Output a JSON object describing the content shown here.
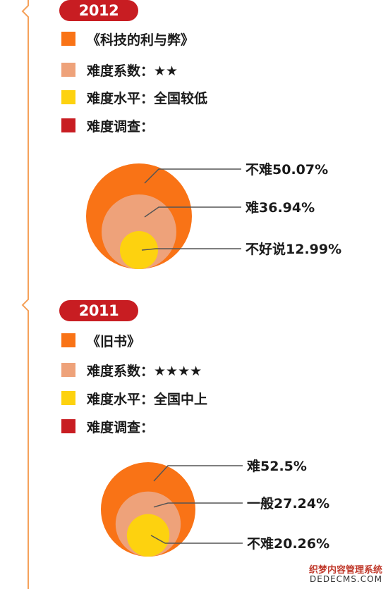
{
  "colors": {
    "orange": "#f97316",
    "peach": "#eea27a",
    "yellow": "#fdd20f",
    "red": "#c81d22",
    "timeline": "#f5a15a",
    "leader": "#555555"
  },
  "sections": [
    {
      "year": "2012",
      "legend": [
        {
          "text": "《科技的利与弊》",
          "swatch": "orange"
        },
        {
          "text": "难度系数：★★",
          "swatch": "peach"
        },
        {
          "text": "难度水平：全国较低",
          "swatch": "yellow"
        },
        {
          "text": "难度调查：",
          "swatch": "red"
        }
      ]
    },
    {
      "year": "2011",
      "legend": [
        {
          "text": "《旧书》",
          "swatch": "orange"
        },
        {
          "text": "难度系数：★★★★",
          "swatch": "peach"
        },
        {
          "text": "难度水平：全国中上",
          "swatch": "yellow"
        },
        {
          "text": "难度调查：",
          "swatch": "red"
        }
      ]
    }
  ],
  "chart_data": [
    {
      "type": "pie",
      "categories": [
        "不难",
        "难",
        "不好说"
      ],
      "values": [
        50.07,
        36.94,
        12.99
      ],
      "labels": [
        "不难50.07%",
        "难36.94%",
        "不好说12.99%"
      ]
    },
    {
      "type": "pie",
      "categories": [
        "难",
        "一般",
        "不难"
      ],
      "values": [
        52.5,
        27.24,
        20.26
      ],
      "labels": [
        "难52.5%",
        "一般27.24%",
        "不难20.26%"
      ]
    }
  ],
  "watermark": {
    "line1": "织梦内容管理系统",
    "line2": "DEDECMS.COM"
  }
}
